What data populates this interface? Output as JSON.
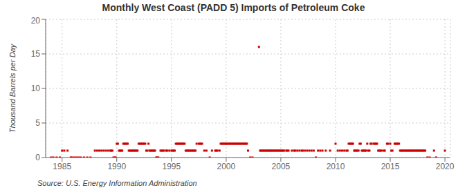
{
  "chart_data": {
    "type": "scatter",
    "title": "Monthly West Coast (PADD 5) Imports of Petroleum Coke",
    "ylabel": "Thousand Barrels per Day",
    "annotations": [
      "Source: U.S. Energy Information Administration"
    ],
    "color": "#cc0000",
    "grid": true,
    "ylim": [
      0,
      20
    ],
    "yticks": [
      0,
      5,
      10,
      15,
      20
    ],
    "xlim": [
      1983.5,
      2020.5
    ],
    "xticks": [
      1985,
      1990,
      1995,
      2000,
      2005,
      2010,
      2015,
      2020
    ],
    "x": [
      1984.0,
      1984.2,
      1984.5,
      1984.8,
      1985.0,
      1985.2,
      1985.5,
      1985.8,
      1985.9,
      1986.1,
      1986.3,
      1986.5,
      1986.7,
      1987.0,
      1987.3,
      1987.6,
      1988.0,
      1988.2,
      1988.4,
      1988.6,
      1988.8,
      1989.0,
      1989.2,
      1989.4,
      1989.5,
      1989.6,
      1989.7,
      1989.8,
      1989.9,
      1990.0,
      1990.1,
      1990.2,
      1990.3,
      1990.4,
      1990.5,
      1990.6,
      1990.7,
      1990.8,
      1990.9,
      1991.0,
      1991.1,
      1991.2,
      1991.3,
      1991.4,
      1991.5,
      1991.6,
      1991.7,
      1991.8,
      1991.9,
      1992.0,
      1992.1,
      1992.2,
      1992.3,
      1992.4,
      1992.5,
      1992.6,
      1992.7,
      1992.8,
      1992.9,
      1993.0,
      1993.1,
      1993.2,
      1993.3,
      1993.4,
      1993.5,
      1993.6,
      1993.7,
      1993.8,
      1994.0,
      1994.1,
      1994.2,
      1994.3,
      1994.5,
      1994.6,
      1994.8,
      1995.0,
      1995.1,
      1995.2,
      1995.3,
      1995.4,
      1995.5,
      1995.6,
      1995.7,
      1995.8,
      1995.9,
      1996.0,
      1996.1,
      1996.2,
      1996.3,
      1996.4,
      1996.5,
      1996.6,
      1996.7,
      1996.8,
      1996.9,
      1997.0,
      1997.1,
      1997.2,
      1997.3,
      1997.5,
      1997.6,
      1997.7,
      1997.8,
      1998.0,
      1998.2,
      1998.5,
      1998.7,
      1999.0,
      1999.1,
      1999.2,
      1999.4,
      1999.5,
      1999.6,
      1999.7,
      1999.8,
      1999.9,
      2000.0,
      2000.1,
      2000.2,
      2000.3,
      2000.4,
      2000.5,
      2000.6,
      2000.7,
      2000.8,
      2000.9,
      2001.0,
      2001.1,
      2001.2,
      2001.3,
      2001.4,
      2001.5,
      2001.6,
      2001.7,
      2001.8,
      2001.9,
      2002.0,
      2002.2,
      2002.4,
      2003.0,
      2003.1,
      2003.2,
      2003.3,
      2003.4,
      2003.5,
      2003.6,
      2003.7,
      2003.8,
      2003.9,
      2004.0,
      2004.1,
      2004.2,
      2004.3,
      2004.4,
      2004.5,
      2004.6,
      2004.7,
      2004.8,
      2004.9,
      2005.0,
      2005.1,
      2005.2,
      2005.3,
      2005.5,
      2005.6,
      2005.7,
      2006.0,
      2006.2,
      2006.3,
      2006.5,
      2006.7,
      2006.9,
      2007.0,
      2007.2,
      2007.4,
      2007.6,
      2007.8,
      2008.0,
      2008.2,
      2008.4,
      2008.6,
      2008.8,
      2009.1,
      2009.5,
      2010.0,
      2010.2,
      2010.4,
      2010.6,
      2010.8,
      2011.0,
      2011.1,
      2011.2,
      2011.3,
      2011.4,
      2011.5,
      2011.6,
      2011.7,
      2011.8,
      2011.9,
      2012.0,
      2012.1,
      2012.2,
      2012.3,
      2012.4,
      2012.5,
      2012.6,
      2012.7,
      2012.8,
      2012.9,
      2013.0,
      2013.1,
      2013.2,
      2013.3,
      2013.5,
      2013.6,
      2013.7,
      2013.8,
      2013.9,
      2014.0,
      2014.1,
      2014.2,
      2014.4,
      2014.5,
      2014.7,
      2014.8,
      2015.0,
      2015.1,
      2015.2,
      2015.4,
      2015.5,
      2015.6,
      2015.7,
      2015.8,
      2015.9,
      2016.0,
      2016.1,
      2016.2,
      2016.3,
      2016.4,
      2016.5,
      2016.6,
      2016.7,
      2016.8,
      2016.9,
      2017.0,
      2017.1,
      2017.2,
      2017.3,
      2017.4,
      2017.5,
      2017.6,
      2017.7,
      2017.8,
      2017.9,
      2018.0,
      2018.1,
      2018.2,
      2018.4,
      2018.6,
      2019.0,
      2019.2,
      2020.0
    ],
    "values": [
      0.0,
      0.0,
      0.0,
      0.0,
      1.0,
      1.0,
      1.0,
      0.0,
      0.0,
      0.0,
      0.0,
      0.0,
      0.0,
      0.0,
      0.0,
      0.0,
      1.0,
      1.0,
      1.0,
      1.0,
      1.0,
      1.0,
      1.0,
      1.0,
      1.0,
      1.0,
      0.0,
      0.0,
      0.0,
      2.0,
      2.0,
      1.0,
      1.0,
      1.0,
      1.0,
      2.0,
      2.0,
      2.0,
      2.0,
      2.0,
      1.0,
      1.0,
      1.0,
      1.0,
      1.0,
      1.0,
      1.0,
      1.0,
      1.0,
      2.0,
      2.0,
      2.0,
      2.0,
      2.0,
      2.0,
      2.0,
      1.0,
      1.0,
      2.0,
      1.0,
      1.0,
      1.0,
      1.0,
      1.0,
      1.0,
      0.0,
      0.0,
      0.0,
      1.0,
      1.0,
      1.0,
      1.0,
      1.0,
      1.0,
      1.0,
      1.0,
      1.0,
      1.0,
      1.0,
      2.0,
      2.0,
      2.0,
      2.0,
      2.0,
      2.0,
      2.0,
      2.0,
      2.0,
      1.0,
      1.0,
      1.0,
      1.0,
      1.0,
      1.0,
      1.0,
      1.0,
      1.0,
      1.0,
      2.0,
      2.0,
      2.0,
      2.0,
      2.0,
      1.0,
      1.0,
      0.0,
      1.0,
      1.0,
      1.0,
      1.0,
      1.0,
      2.0,
      2.0,
      2.0,
      2.0,
      2.0,
      2.0,
      2.0,
      2.0,
      2.0,
      2.0,
      2.0,
      2.0,
      2.0,
      2.0,
      2.0,
      2.0,
      2.0,
      2.0,
      2.0,
      2.0,
      2.0,
      2.0,
      2.0,
      2.0,
      2.0,
      1.0,
      0.0,
      0.0,
      16.0,
      1.0,
      1.0,
      1.0,
      1.0,
      1.0,
      1.0,
      1.0,
      1.0,
      1.0,
      1.0,
      1.0,
      1.0,
      1.0,
      1.0,
      1.0,
      1.0,
      1.0,
      1.0,
      1.0,
      1.0,
      1.0,
      1.0,
      1.0,
      1.0,
      1.0,
      1.0,
      1.0,
      1.0,
      1.0,
      1.0,
      1.0,
      1.0,
      1.0,
      1.0,
      1.0,
      1.0,
      1.0,
      1.0,
      0.0,
      1.0,
      1.0,
      1.0,
      1.0,
      1.0,
      2.0,
      1.0,
      1.0,
      1.0,
      1.0,
      1.0,
      1.0,
      2.0,
      2.0,
      2.0,
      2.0,
      2.0,
      1.0,
      1.0,
      1.0,
      1.0,
      1.0,
      2.0,
      2.0,
      1.0,
      1.0,
      1.0,
      1.0,
      1.0,
      2.0,
      1.0,
      1.0,
      2.0,
      2.0,
      2.0,
      2.0,
      2.0,
      2.0,
      1.0,
      1.0,
      1.0,
      1.0,
      1.0,
      1.0,
      2.0,
      2.0,
      2.0,
      1.0,
      1.0,
      2.0,
      2.0,
      2.0,
      2.0,
      2.0,
      1.0,
      1.0,
      1.0,
      1.0,
      1.0,
      1.0,
      1.0,
      1.0,
      1.0,
      1.0,
      1.0,
      1.0,
      1.0,
      1.0,
      1.0,
      1.0,
      1.0,
      1.0,
      1.0,
      1.0,
      1.0,
      1.0,
      1.0,
      1.0,
      0.0,
      0.0,
      1.0,
      0.0,
      1.0
    ]
  }
}
